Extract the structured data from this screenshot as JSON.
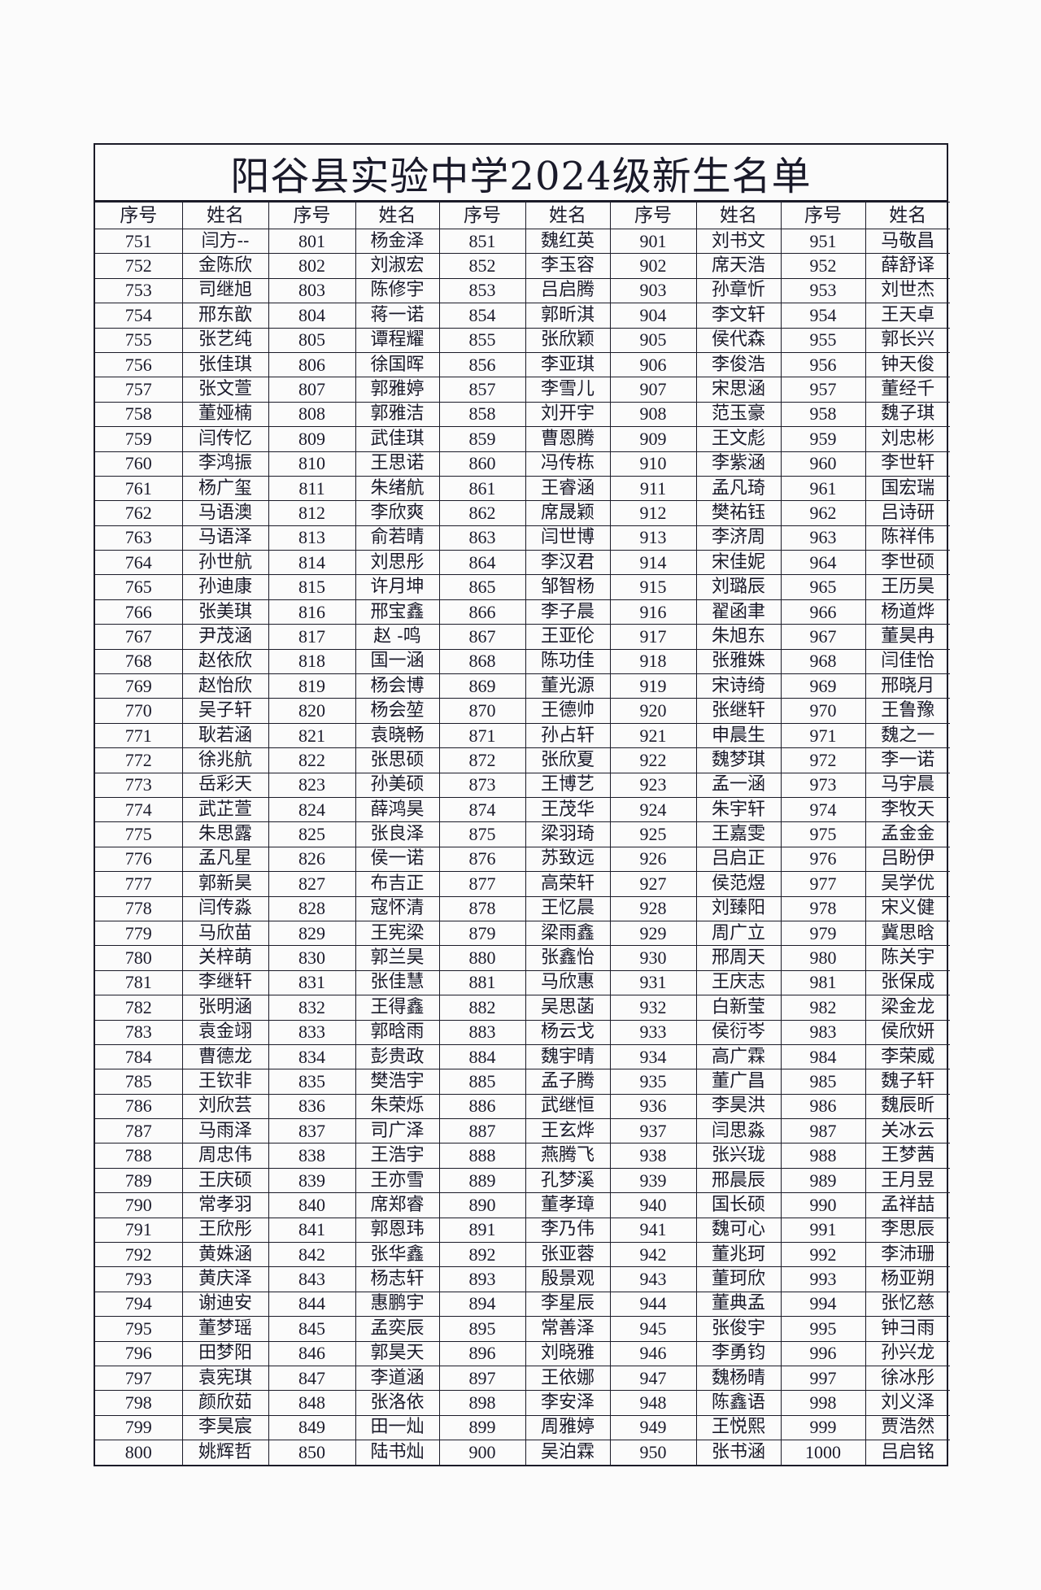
{
  "title": "阳谷县实验中学2024级新生名单",
  "headers": {
    "seq": "序号",
    "name": "姓名"
  },
  "columns": [
    {
      "numbers": [
        751,
        752,
        753,
        754,
        755,
        756,
        757,
        758,
        759,
        760,
        761,
        762,
        763,
        764,
        765,
        766,
        767,
        768,
        769,
        770,
        771,
        772,
        773,
        774,
        775,
        776,
        777,
        778,
        779,
        780,
        781,
        782,
        783,
        784,
        785,
        786,
        787,
        788,
        789,
        790,
        791,
        792,
        793,
        794,
        795,
        796,
        797,
        798,
        799,
        800
      ],
      "names": [
        "闫方--",
        "金陈欣",
        "司继旭",
        "邢东歆",
        "张艺纯",
        "张佳琪",
        "张文萱",
        "董娅楠",
        "闫传忆",
        "李鸿振",
        "杨广玺",
        "马语澳",
        "马语泽",
        "孙世航",
        "孙迪康",
        "张美琪",
        "尹茂涵",
        "赵依欣",
        "赵怡欣",
        "吴子轩",
        "耿若涵",
        "徐兆航",
        "岳彩天",
        "武芷萱",
        "朱思露",
        "孟凡星",
        "郭新昊",
        "闫传淼",
        "马欣苗",
        "关梓萌",
        "李继轩",
        "张明涵",
        "袁金翊",
        "曹德龙",
        "王钦非",
        "刘欣芸",
        "马雨泽",
        "周忠伟",
        "王庆硕",
        "常孝羽",
        "王欣彤",
        "黄姝涵",
        "黄庆泽",
        "谢迪安",
        "董梦瑶",
        "田梦阳",
        "袁宪琪",
        "颜欣茹",
        "李昊宸",
        "姚辉哲"
      ]
    },
    {
      "numbers": [
        801,
        802,
        803,
        804,
        805,
        806,
        807,
        808,
        809,
        810,
        811,
        812,
        813,
        814,
        815,
        816,
        817,
        818,
        819,
        820,
        821,
        822,
        823,
        824,
        825,
        826,
        827,
        828,
        829,
        830,
        831,
        832,
        833,
        834,
        835,
        836,
        837,
        838,
        839,
        840,
        841,
        842,
        843,
        844,
        845,
        846,
        847,
        848,
        849,
        850
      ],
      "names": [
        "杨金泽",
        "刘淑宏",
        "陈修宇",
        "蒋一诺",
        "谭程耀",
        "徐国晖",
        "郭雅婷",
        "郭雅洁",
        "武佳琪",
        "王思诺",
        "朱绪航",
        "李欣爽",
        "俞若晴",
        "刘思彤",
        "许月坤",
        "邢宝鑫",
        "赵 -鸣",
        "国一涵",
        "杨会博",
        "杨会堃",
        "袁晓畅",
        "张思硕",
        "孙美硕",
        "薛鸿昊",
        "张良泽",
        "侯一诺",
        "布吉正",
        "寇怀清",
        "王宪梁",
        "郭兰昊",
        "张佳慧",
        "王得鑫",
        "郭晗雨",
        "彭贵政",
        "樊浩宇",
        "朱荣烁",
        "司广泽",
        "王浩宇",
        "王亦雪",
        "席郑睿",
        "郭恩玮",
        "张华鑫",
        "杨志轩",
        "惠鹏宇",
        "孟奕辰",
        "郭昊天",
        "李道涵",
        "张洛依",
        "田一灿",
        "陆书灿"
      ]
    },
    {
      "numbers": [
        851,
        852,
        853,
        854,
        855,
        856,
        857,
        858,
        859,
        860,
        861,
        862,
        863,
        864,
        865,
        866,
        867,
        868,
        869,
        870,
        871,
        872,
        873,
        874,
        875,
        876,
        877,
        878,
        879,
        880,
        881,
        882,
        883,
        884,
        885,
        886,
        887,
        888,
        889,
        890,
        891,
        892,
        893,
        894,
        895,
        896,
        897,
        898,
        899,
        900
      ],
      "names": [
        "魏红英",
        "李玉容",
        "吕启腾",
        "郭昕淇",
        "张欣颖",
        "李亚琪",
        "李雪儿",
        "刘开宇",
        "曹恩腾",
        "冯传栋",
        "王睿涵",
        "席晟颖",
        "闫世博",
        "李汉君",
        "邹智杨",
        "李子晨",
        "王亚伦",
        "陈功佳",
        "董光源",
        "王德帅",
        "孙占轩",
        "张欣夏",
        "王博艺",
        "王茂华",
        "梁羽琦",
        "苏致远",
        "高荣轩",
        "王忆晨",
        "梁雨鑫",
        "张鑫怡",
        "马欣惠",
        "吴思菡",
        "杨云戈",
        "魏宇晴",
        "孟子腾",
        "武继恒",
        "王玄烨",
        "燕腾飞",
        "孔梦溪",
        "董孝璋",
        "李乃伟",
        "张亚蓉",
        "殷景观",
        "李星辰",
        "常善泽",
        "刘晓雅",
        "王依娜",
        "李安泽",
        "周雅婷",
        "吴泊霖"
      ]
    },
    {
      "numbers": [
        901,
        902,
        903,
        904,
        905,
        906,
        907,
        908,
        909,
        910,
        911,
        912,
        913,
        914,
        915,
        916,
        917,
        918,
        919,
        920,
        921,
        922,
        923,
        924,
        925,
        926,
        927,
        928,
        929,
        930,
        931,
        932,
        933,
        934,
        935,
        936,
        937,
        938,
        939,
        940,
        941,
        942,
        943,
        944,
        945,
        946,
        947,
        948,
        949,
        950
      ],
      "names": [
        "刘书文",
        "席天浩",
        "孙章忻",
        "李文轩",
        "侯代森",
        "李俊浩",
        "宋思涵",
        "范玉豪",
        "王文彪",
        "李紫涵",
        "孟凡琦",
        "樊祐钰",
        "李济周",
        "宋佳妮",
        "刘璐辰",
        "翟函聿",
        "朱旭东",
        "张雅姝",
        "宋诗绮",
        "张继轩",
        "申晨生",
        "魏梦琪",
        "孟一涵",
        "朱宇轩",
        "王嘉雯",
        "吕启正",
        "侯范煜",
        "刘臻阳",
        "周广立",
        "邢周天",
        "王庆志",
        "白新莹",
        "侯衍岑",
        "高广霖",
        "董广昌",
        "李昊洪",
        "闫思淼",
        "张兴珑",
        "邢晨辰",
        "国长硕",
        "魏可心",
        "董兆珂",
        "董珂欣",
        "董典孟",
        "张俊宇",
        "李勇钧",
        "魏杨晴",
        "陈鑫语",
        "王悦熙",
        "张书涵"
      ]
    },
    {
      "numbers": [
        951,
        952,
        953,
        954,
        955,
        956,
        957,
        958,
        959,
        960,
        961,
        962,
        963,
        964,
        965,
        966,
        967,
        968,
        969,
        970,
        971,
        972,
        973,
        974,
        975,
        976,
        977,
        978,
        979,
        980,
        981,
        982,
        983,
        984,
        985,
        986,
        987,
        988,
        989,
        990,
        991,
        992,
        993,
        994,
        995,
        996,
        997,
        998,
        999,
        1000
      ],
      "names": [
        "马敬昌",
        "薛舒译",
        "刘世杰",
        "王天卓",
        "郭长兴",
        "钟天俊",
        "董经千",
        "魏子琪",
        "刘忠彬",
        "李世轩",
        "国宏瑞",
        "吕诗研",
        "陈祥伟",
        "李世硕",
        "王历昊",
        "杨道烨",
        "董昊冉",
        "闫佳怡",
        "邢晓月",
        "王鲁豫",
        "魏之一",
        "李一诺",
        "马宇晨",
        "李牧天",
        "孟金金",
        "吕盼伊",
        "吴学优",
        "宋义健",
        "冀思晗",
        "陈关宇",
        "张保成",
        "梁金龙",
        "侯欣妍",
        "李荣威",
        "魏子轩",
        "魏辰昕",
        "关冰云",
        "王梦茜",
        "王月昱",
        "孟祥喆",
        "李思辰",
        "李沛珊",
        "杨亚朔",
        "张忆慈",
        "钟彐雨",
        "孙兴龙",
        "徐冰彤",
        "刘义泽",
        "贾浩然",
        "吕启铭"
      ]
    }
  ]
}
